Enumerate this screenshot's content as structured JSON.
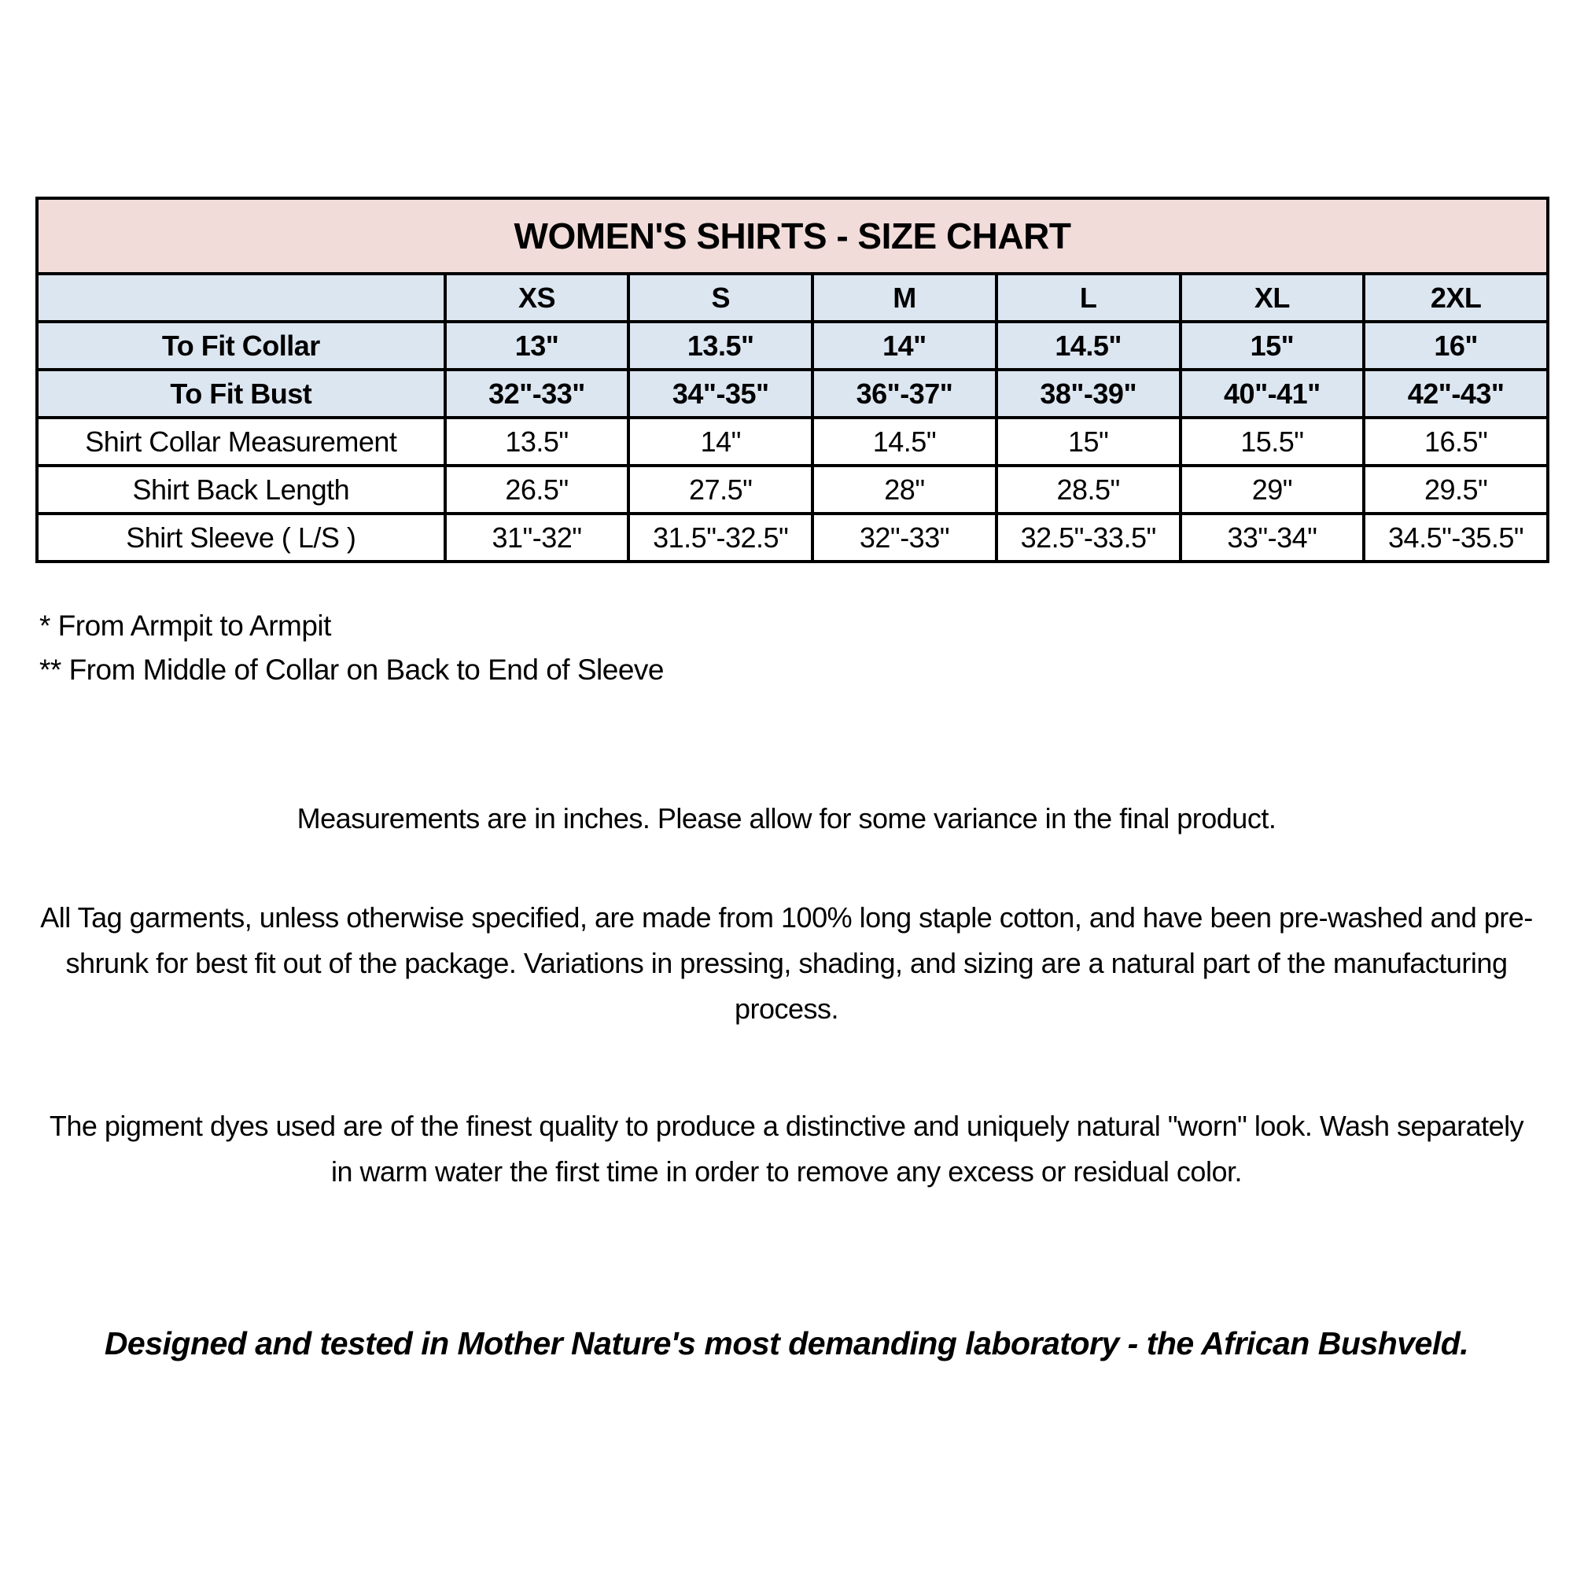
{
  "table": {
    "title": "WOMEN'S SHIRTS - SIZE CHART",
    "corner_label": "",
    "sizes": [
      "XS",
      "S",
      "M",
      "L",
      "XL",
      "2XL"
    ],
    "rows": [
      {
        "label": "To Fit Collar",
        "emphasis": true,
        "values": [
          "13\"",
          "13.5\"",
          "14\"",
          "14.5\"",
          "15\"",
          "16\""
        ]
      },
      {
        "label": "To Fit Bust",
        "emphasis": true,
        "values": [
          "32\"-33\"",
          "34\"-35\"",
          "36\"-37\"",
          "38\"-39\"",
          "40\"-41\"",
          "42\"-43\""
        ]
      },
      {
        "label": "Shirt Collar Measurement",
        "emphasis": false,
        "values": [
          "13.5\"",
          "14\"",
          "14.5\"",
          "15\"",
          "15.5\"",
          "16.5\""
        ]
      },
      {
        "label": "Shirt Back Length",
        "emphasis": false,
        "values": [
          "26.5\"",
          "27.5\"",
          "28\"",
          "28.5\"",
          "29\"",
          "29.5\""
        ]
      },
      {
        "label": "Shirt Sleeve ( L/S )",
        "emphasis": false,
        "values": [
          "31\"-32\"",
          "31.5\"-32.5\"",
          "32\"-33\"",
          "32.5\"-33.5\"",
          "33\"-34\"",
          "34.5\"-35.5\""
        ]
      }
    ],
    "colors": {
      "title_bg": "#f1dcda",
      "header_bg": "#dce6f1",
      "row_bg": "#ffffff",
      "border": "#000000"
    }
  },
  "footnotes": [
    "* From Armpit to Armpit",
    "** From Middle of Collar on Back to End of Sleeve"
  ],
  "paragraphs": [
    "Measurements are in inches. Please allow for some variance in the final product.",
    "All Tag garments, unless otherwise specified, are made from 100% long staple cotton, and have been pre-washed and pre-shrunk for best fit out of the package. Variations in pressing, shading, and sizing are a natural part of the manufacturing process.",
    "The pigment dyes used are of the finest quality to produce a distinctive and uniquely natural \"worn\" look. Wash separately in warm water the first time in order to remove any excess or residual color."
  ],
  "footer": "Designed and tested in Mother Nature's most demanding laboratory - the African Bushveld."
}
